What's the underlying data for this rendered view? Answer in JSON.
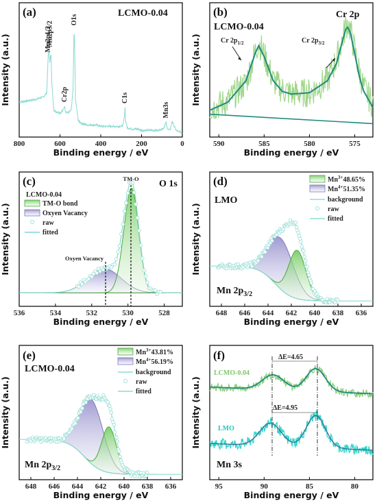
{
  "figure": {
    "xlabel": "Binding energy / eV",
    "ylabel": "Intensity (a.u.)"
  },
  "chart_data": [
    {
      "id": "a",
      "type": "line",
      "panel_label": "(a)",
      "title": "LCMO-0.04",
      "xlabel": "Binding energy / eV",
      "ylabel": "Intensity (a.u.)",
      "xlim": [
        800,
        0
      ],
      "xticks": [
        "800",
        "600",
        "400",
        "200",
        "0"
      ],
      "series": [
        {
          "color": "#8fdcd4",
          "x": [
            800,
            760,
            720,
            700,
            680,
            665,
            658,
            654,
            650,
            644,
            640,
            630,
            620,
            600,
            585,
            578,
            572,
            560,
            545,
            536,
            531,
            528,
            524,
            510,
            490,
            470,
            450,
            420,
            400,
            380,
            350,
            320,
            300,
            290,
            285,
            281,
            278,
            270,
            250,
            220,
            200,
            180,
            160,
            140,
            120,
            100,
            90,
            85,
            80,
            75,
            70,
            60,
            50,
            40,
            30,
            20,
            10,
            5,
            0
          ],
          "y": [
            0.26,
            0.27,
            0.28,
            0.29,
            0.3,
            0.33,
            0.6,
            0.64,
            0.56,
            0.62,
            0.4,
            0.2,
            0.19,
            0.18,
            0.2,
            0.23,
            0.19,
            0.18,
            0.2,
            0.35,
            0.8,
            0.7,
            0.28,
            0.12,
            0.1,
            0.09,
            0.09,
            0.09,
            0.08,
            0.08,
            0.08,
            0.08,
            0.08,
            0.09,
            0.15,
            0.22,
            0.12,
            0.07,
            0.06,
            0.06,
            0.05,
            0.05,
            0.05,
            0.05,
            0.05,
            0.06,
            0.07,
            0.09,
            0.11,
            0.07,
            0.06,
            0.05,
            0.12,
            0.08,
            0.05,
            0.04,
            0.04,
            0.03,
            0.03
          ]
        }
      ],
      "annotations": [
        {
          "text": "Mn2p3/2",
          "x": 651,
          "y": 0.66
        },
        {
          "text": "Mn2p1/2",
          "x": 658,
          "y": 0.62
        },
        {
          "text": "O1s",
          "x": 531,
          "y": 0.82
        },
        {
          "text": "Cr2p",
          "x": 578,
          "y": 0.25
        },
        {
          "text": "C1s",
          "x": 282,
          "y": 0.24
        },
        {
          "text": "Mn3s",
          "x": 80,
          "y": 0.13
        }
      ]
    },
    {
      "id": "b",
      "type": "line",
      "panel_label": "(b)",
      "title": "Cr 2p",
      "sample": "LCMO-0.04",
      "xlabel": "Binding energy / eV",
      "ylabel": "Intensity (a.u.)",
      "xlim": [
        591,
        573
      ],
      "xticks": [
        "590",
        "585",
        "580",
        "575"
      ],
      "series": [
        {
          "name": "raw",
          "color": "#9fd68a",
          "x": [
            591,
            589,
            587,
            585.6,
            584,
            582,
            580,
            578,
            576.5,
            575.8,
            575,
            574,
            573
          ],
          "y": [
            0.22,
            0.28,
            0.38,
            0.75,
            0.42,
            0.33,
            0.33,
            0.43,
            0.72,
            0.9,
            0.68,
            0.4,
            0.28
          ]
        },
        {
          "name": "fit",
          "color": "#1f8a7f",
          "x": [
            591,
            589,
            587,
            586,
            585.6,
            585,
            584,
            583,
            582,
            580,
            578,
            577,
            576.5,
            576,
            575.8,
            575.5,
            575,
            574.5,
            574,
            573
          ],
          "y": [
            0.2,
            0.26,
            0.42,
            0.62,
            0.68,
            0.6,
            0.42,
            0.34,
            0.32,
            0.33,
            0.42,
            0.55,
            0.68,
            0.8,
            0.82,
            0.78,
            0.62,
            0.45,
            0.34,
            0.22
          ]
        },
        {
          "name": "background",
          "color": "#1f8a7f",
          "x": [
            591,
            573
          ],
          "y": [
            0.17,
            0.1
          ]
        }
      ],
      "annotations": [
        {
          "text": "Cr 2p1/2",
          "x": 585.6
        },
        {
          "text": "Cr 2p3/2",
          "x": 575.8
        }
      ]
    },
    {
      "id": "c",
      "type": "line",
      "panel_label": "(c)",
      "title": "O 1s",
      "sample": "LCMO-0.04",
      "xlabel": "Binding energy / eV",
      "ylabel": "Intensity (a.u.)",
      "xlim": [
        536,
        527
      ],
      "xticks": [
        "536",
        "534",
        "532",
        "530",
        "528"
      ],
      "legend": [
        "TM-O bond",
        "Oxyen Vacancy",
        "raw",
        "fitted"
      ],
      "peaks": [
        {
          "name": "TM-O bond",
          "center": 529.8,
          "label": "TM-O"
        },
        {
          "name": "Oxyen Vacancy",
          "center": 531.3,
          "label": "Oxyen Vacancy"
        }
      ]
    },
    {
      "id": "d",
      "type": "line",
      "panel_label": "(d)",
      "title": "Mn 2p3/2",
      "sample": "LMO",
      "xlabel": "Binding energy / eV",
      "ylabel": "Intensity (a.u.)",
      "xlim": [
        649,
        635
      ],
      "xticks": [
        "648",
        "646",
        "644",
        "642",
        "640",
        "638",
        "636"
      ],
      "legend": [
        {
          "label": "Mn3+ 48.65%",
          "sup": "3+",
          "pct": "48.65%"
        },
        {
          "label": "Mn4+ 51.35%",
          "sup": "4+",
          "pct": "51.35%"
        },
        {
          "label": "background"
        },
        {
          "label": "raw"
        },
        {
          "label": "fitted"
        }
      ],
      "peaks": [
        {
          "name": "Mn3+",
          "center": 641.5
        },
        {
          "name": "Mn4+",
          "center": 642.9
        }
      ]
    },
    {
      "id": "e",
      "type": "line",
      "panel_label": "(e)",
      "title": "Mn 2p3/2",
      "sample": "LCMO-0.04",
      "xlabel": "Binding energy / eV",
      "ylabel": "Intensity (a.u.)",
      "xlim": [
        649,
        635
      ],
      "xticks": [
        "648",
        "646",
        "644",
        "642",
        "640",
        "638",
        "636"
      ],
      "legend": [
        {
          "label": "Mn3+ 43.81%",
          "sup": "3+",
          "pct": "43.81%"
        },
        {
          "label": "Mn4+ 56.19%",
          "sup": "4+",
          "pct": "56.19%"
        },
        {
          "label": "background"
        },
        {
          "label": "raw"
        },
        {
          "label": "fitted"
        }
      ],
      "peaks": [
        {
          "name": "Mn3+",
          "center": 641.3
        },
        {
          "name": "Mn4+",
          "center": 642.8
        }
      ]
    },
    {
      "id": "f",
      "type": "line",
      "panel_label": "(f)",
      "title": "Mn 3s",
      "xlabel": "Binding energy / eV",
      "ylabel": "Intensity (a.u.)",
      "xlim": [
        96,
        78
      ],
      "xticks": [
        "95",
        "90",
        "85",
        "80"
      ],
      "series": [
        {
          "name": "LCMO-0.04",
          "color": "#8fcf7e",
          "peaks": [
            89.0,
            84.3
          ]
        },
        {
          "name": "LMO",
          "color": "#2ed6c8",
          "peaks": [
            89.3,
            84.3
          ]
        }
      ],
      "annotations": [
        {
          "text": "ΔE=4.65",
          "series": "LCMO-0.04"
        },
        {
          "text": "ΔE=4.95",
          "series": "LMO"
        }
      ]
    }
  ]
}
